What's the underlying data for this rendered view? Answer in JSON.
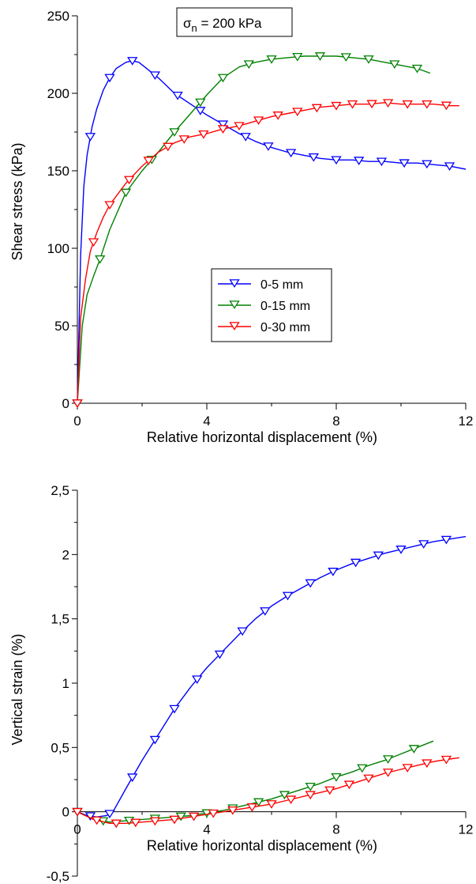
{
  "chart_data": [
    {
      "type": "line",
      "title": "",
      "annotation": {
        "symbol": "σ",
        "subscript": "n",
        "text": " = 200 kPa"
      },
      "xlabel": "Relative horizontal displacement (%)",
      "ylabel": "Shear stress (kPa)",
      "xlim": [
        0,
        12
      ],
      "ylim": [
        0,
        250
      ],
      "xticks": [
        0,
        4,
        8,
        12
      ],
      "xtick_labels": [
        "0",
        "4",
        "8",
        "12"
      ],
      "yticks": [
        0,
        50,
        100,
        150,
        200,
        250
      ],
      "ytick_labels": [
        "0",
        "50",
        "100",
        "150",
        "200",
        "250"
      ],
      "grid": false,
      "legend_position": "center",
      "series": [
        {
          "name": "0-5 mm",
          "color": "#0000ff",
          "marker": "triangle-down",
          "x": [
            0,
            0.1,
            0.2,
            0.3,
            0.45,
            0.6,
            0.8,
            1.0,
            1.2,
            1.5,
            1.7,
            1.9,
            2.2,
            2.5,
            3.0,
            3.5,
            4.0,
            4.5,
            5.0,
            5.5,
            6.0,
            6.5,
            7.0,
            7.5,
            8.0,
            8.5,
            9.0,
            9.5,
            10.0,
            10.5,
            11.0,
            11.5,
            12.0
          ],
          "y": [
            0,
            95,
            140,
            160,
            178,
            190,
            202,
            210,
            216,
            220,
            221,
            220,
            215,
            210,
            200,
            193,
            186,
            180,
            174,
            169,
            165,
            162,
            160,
            158,
            157,
            157,
            156,
            156,
            155,
            155,
            154,
            153,
            151
          ],
          "marker_x": [
            0,
            0.4,
            1.0,
            1.7,
            2.4,
            3.1,
            3.8,
            4.5,
            5.2,
            5.9,
            6.6,
            7.3,
            8.0,
            8.7,
            9.4,
            10.1,
            10.8,
            11.5
          ]
        },
        {
          "name": "0-15 mm",
          "color": "#008000",
          "marker": "triangle-down",
          "x": [
            0,
            0.15,
            0.3,
            0.5,
            0.7,
            1.0,
            1.5,
            2.0,
            2.5,
            3.0,
            3.5,
            4.0,
            4.5,
            5.0,
            5.5,
            6.0,
            6.5,
            7.0,
            7.5,
            8.0,
            8.5,
            9.0,
            9.5,
            10.0,
            10.5,
            10.9
          ],
          "y": [
            0,
            50,
            70,
            82,
            93,
            112,
            136,
            150,
            162,
            175,
            187,
            199,
            210,
            217,
            220,
            222,
            223,
            224,
            224,
            224,
            223,
            222,
            220,
            218,
            216,
            213
          ],
          "marker_x": [
            0,
            0.7,
            1.5,
            2.3,
            3.0,
            3.8,
            4.5,
            5.3,
            6.0,
            6.8,
            7.5,
            8.3,
            9.0,
            9.8,
            10.5
          ]
        },
        {
          "name": "0-30 mm",
          "color": "#ff0000",
          "marker": "triangle-down",
          "x": [
            0,
            0.1,
            0.25,
            0.4,
            0.6,
            0.8,
            1.0,
            1.5,
            2.0,
            2.5,
            3.0,
            3.5,
            4.0,
            4.5,
            5.0,
            5.5,
            6.0,
            6.5,
            7.0,
            7.5,
            8.0,
            8.5,
            9.0,
            9.5,
            10.0,
            10.5,
            11.0,
            11.5,
            11.8
          ],
          "y": [
            0,
            55,
            80,
            98,
            110,
            120,
            128,
            142,
            153,
            162,
            168,
            172,
            174,
            177,
            179,
            182,
            185,
            187,
            189,
            191,
            192,
            193,
            193,
            194,
            193,
            193,
            193,
            192,
            192
          ],
          "marker_x": [
            0,
            0.5,
            1.0,
            1.6,
            2.2,
            2.8,
            3.3,
            3.9,
            4.5,
            5.0,
            5.6,
            6.2,
            6.8,
            7.4,
            8.0,
            8.5,
            9.1,
            9.6,
            10.2,
            10.8,
            11.4
          ]
        }
      ]
    },
    {
      "type": "line",
      "title": "",
      "xlabel": "Relative horizontal displacement (%)",
      "ylabel": "Vertical strain (%)",
      "xlim": [
        0,
        12
      ],
      "ylim": [
        -0.5,
        2.5
      ],
      "xticks": [
        0,
        4,
        8,
        12
      ],
      "xtick_labels": [
        "0",
        "4",
        "8",
        "12"
      ],
      "yticks": [
        -0.5,
        0,
        0.5,
        1,
        1.5,
        2,
        2.5
      ],
      "ytick_labels": [
        "-0,5",
        "0",
        "0,5",
        "1",
        "1,5",
        "2",
        "2,5"
      ],
      "grid": false,
      "series": [
        {
          "name": "0-5 mm",
          "color": "#0000ff",
          "marker": "triangle-down",
          "x": [
            0,
            0.3,
            0.6,
            0.9,
            1.1,
            1.5,
            2.0,
            2.5,
            3.0,
            3.5,
            4.0,
            4.5,
            5.0,
            5.5,
            6.0,
            6.5,
            7.0,
            7.5,
            8.0,
            8.5,
            9.0,
            9.5,
            10.0,
            10.5,
            11.0,
            11.5,
            12.0
          ],
          "y": [
            0,
            -0.03,
            -0.04,
            -0.03,
            0.0,
            0.18,
            0.4,
            0.6,
            0.8,
            0.97,
            1.12,
            1.25,
            1.38,
            1.5,
            1.6,
            1.68,
            1.75,
            1.82,
            1.88,
            1.93,
            1.97,
            2.01,
            2.04,
            2.07,
            2.1,
            2.12,
            2.14
          ],
          "marker_x": [
            0,
            0.4,
            1.0,
            1.7,
            2.4,
            3.0,
            3.7,
            4.4,
            5.1,
            5.8,
            6.5,
            7.2,
            7.9,
            8.6,
            9.3,
            10.0,
            10.7,
            11.4
          ]
        },
        {
          "name": "0-15 mm",
          "color": "#008000",
          "marker": "triangle-down",
          "x": [
            0,
            0.5,
            1.0,
            1.5,
            2.0,
            2.5,
            3.0,
            3.5,
            4.0,
            4.5,
            5.0,
            5.5,
            6.0,
            6.5,
            7.0,
            7.5,
            8.0,
            8.5,
            9.0,
            9.5,
            10.0,
            10.5,
            11.0
          ],
          "y": [
            0,
            -0.06,
            -0.08,
            -0.07,
            -0.06,
            -0.05,
            -0.04,
            -0.03,
            -0.01,
            0.01,
            0.04,
            0.07,
            0.1,
            0.14,
            0.18,
            0.22,
            0.27,
            0.31,
            0.36,
            0.4,
            0.45,
            0.5,
            0.55
          ],
          "marker_x": [
            0,
            0.8,
            1.6,
            2.4,
            3.2,
            4.0,
            4.8,
            5.6,
            6.4,
            7.2,
            8.0,
            8.8,
            9.6,
            10.4
          ]
        },
        {
          "name": "0-30 mm",
          "color": "#ff0000",
          "marker": "triangle-down",
          "x": [
            0,
            0.5,
            1.0,
            1.5,
            2.0,
            2.5,
            3.0,
            3.5,
            4.0,
            4.5,
            5.0,
            5.5,
            6.0,
            6.5,
            7.0,
            7.5,
            8.0,
            8.5,
            9.0,
            9.5,
            10.0,
            10.5,
            11.0,
            11.5,
            11.8
          ],
          "y": [
            0,
            -0.06,
            -0.09,
            -0.09,
            -0.08,
            -0.07,
            -0.06,
            -0.04,
            -0.02,
            0.0,
            0.02,
            0.04,
            0.06,
            0.09,
            0.12,
            0.15,
            0.18,
            0.22,
            0.26,
            0.3,
            0.33,
            0.36,
            0.39,
            0.41,
            0.42
          ],
          "marker_x": [
            0,
            0.6,
            1.2,
            1.8,
            2.4,
            3.0,
            3.6,
            4.2,
            4.8,
            5.4,
            6.0,
            6.6,
            7.2,
            7.8,
            8.4,
            9.0,
            9.6,
            10.2,
            10.8,
            11.4
          ]
        }
      ]
    }
  ]
}
